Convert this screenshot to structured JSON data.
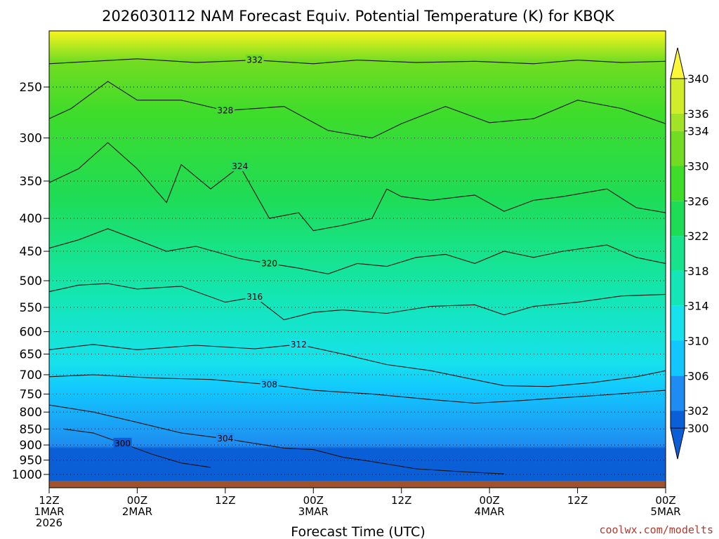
{
  "chart_data": {
    "type": "heatmap",
    "title": "2026030112 NAM Forecast Equiv. Potential Temperature (K) for KBQK",
    "xlabel": "Forecast Time (UTC)",
    "ylabel": "",
    "y_axis": {
      "ticks": [
        250,
        300,
        350,
        400,
        450,
        500,
        550,
        600,
        650,
        700,
        750,
        800,
        850,
        900,
        950,
        1000
      ],
      "scale": "log-pressure",
      "inverted": true
    },
    "x_axis": {
      "range_hours": [
        0,
        84
      ],
      "ticks": [
        {
          "hour": 0,
          "lines": [
            "12Z",
            "1MAR",
            "2026"
          ]
        },
        {
          "hour": 12,
          "lines": [
            "00Z",
            "2MAR"
          ]
        },
        {
          "hour": 24,
          "lines": [
            "12Z"
          ]
        },
        {
          "hour": 36,
          "lines": [
            "00Z",
            "3MAR"
          ]
        },
        {
          "hour": 48,
          "lines": [
            "12Z"
          ]
        },
        {
          "hour": 60,
          "lines": [
            "00Z",
            "4MAR"
          ]
        },
        {
          "hour": 72,
          "lines": [
            "12Z"
          ]
        },
        {
          "hour": 84,
          "lines": [
            "00Z",
            "5MAR"
          ]
        }
      ]
    },
    "colorbar": {
      "levels": [
        300,
        302,
        306,
        310,
        314,
        318,
        322,
        326,
        330,
        334,
        336,
        340
      ],
      "min": 298,
      "max": 342
    },
    "isotherms": [
      {
        "value": 332,
        "label": "332",
        "pts": [
          [
            0,
            230
          ],
          [
            6,
            228
          ],
          [
            12,
            226
          ],
          [
            20,
            229
          ],
          [
            28,
            227
          ],
          [
            36,
            230
          ],
          [
            42,
            227
          ],
          [
            50,
            229
          ],
          [
            58,
            228
          ],
          [
            66,
            230
          ],
          [
            72,
            227
          ],
          [
            78,
            229
          ],
          [
            84,
            228
          ]
        ]
      },
      {
        "value": 328,
        "label": "328",
        "pts": [
          [
            0,
            280
          ],
          [
            3,
            270
          ],
          [
            8,
            245
          ],
          [
            12,
            262
          ],
          [
            18,
            262
          ],
          [
            24,
            272
          ],
          [
            32,
            268
          ],
          [
            38,
            292
          ],
          [
            44,
            300
          ],
          [
            48,
            285
          ],
          [
            54,
            268
          ],
          [
            60,
            284
          ],
          [
            66,
            280
          ],
          [
            72,
            262
          ],
          [
            78,
            270
          ],
          [
            84,
            285
          ]
        ]
      },
      {
        "value": 324,
        "label": "324",
        "pts": [
          [
            0,
            352
          ],
          [
            4,
            335
          ],
          [
            8,
            305
          ],
          [
            12,
            335
          ],
          [
            16,
            378
          ],
          [
            18,
            330
          ],
          [
            22,
            360
          ],
          [
            26,
            332
          ],
          [
            30,
            400
          ],
          [
            34,
            392
          ],
          [
            36,
            418
          ],
          [
            40,
            410
          ],
          [
            44,
            400
          ],
          [
            46,
            360
          ],
          [
            48,
            370
          ],
          [
            52,
            375
          ],
          [
            58,
            368
          ],
          [
            62,
            390
          ],
          [
            66,
            375
          ],
          [
            70,
            370
          ],
          [
            76,
            360
          ],
          [
            80,
            385
          ],
          [
            84,
            392
          ]
        ]
      },
      {
        "value": 320,
        "label": "320",
        "pts": [
          [
            0,
            445
          ],
          [
            4,
            432
          ],
          [
            8,
            415
          ],
          [
            12,
            432
          ],
          [
            16,
            450
          ],
          [
            20,
            442
          ],
          [
            26,
            462
          ],
          [
            30,
            470
          ],
          [
            34,
            478
          ],
          [
            38,
            488
          ],
          [
            42,
            470
          ],
          [
            46,
            475
          ],
          [
            50,
            460
          ],
          [
            54,
            455
          ],
          [
            58,
            470
          ],
          [
            62,
            450
          ],
          [
            66,
            460
          ],
          [
            70,
            450
          ],
          [
            76,
            440
          ],
          [
            80,
            460
          ],
          [
            84,
            470
          ]
        ]
      },
      {
        "value": 316,
        "label": "316",
        "pts": [
          [
            0,
            520
          ],
          [
            4,
            508
          ],
          [
            8,
            505
          ],
          [
            12,
            515
          ],
          [
            18,
            510
          ],
          [
            24,
            540
          ],
          [
            28,
            530
          ],
          [
            32,
            575
          ],
          [
            36,
            560
          ],
          [
            40,
            555
          ],
          [
            46,
            562
          ],
          [
            52,
            548
          ],
          [
            58,
            545
          ],
          [
            62,
            565
          ],
          [
            66,
            548
          ],
          [
            72,
            540
          ],
          [
            78,
            528
          ],
          [
            84,
            525
          ]
        ]
      },
      {
        "value": 312,
        "label": "312",
        "pts": [
          [
            0,
            640
          ],
          [
            6,
            628
          ],
          [
            12,
            640
          ],
          [
            20,
            630
          ],
          [
            28,
            638
          ],
          [
            34,
            628
          ],
          [
            40,
            650
          ],
          [
            46,
            675
          ],
          [
            52,
            690
          ],
          [
            56,
            705
          ],
          [
            62,
            728
          ],
          [
            68,
            730
          ],
          [
            74,
            720
          ],
          [
            80,
            705
          ],
          [
            84,
            690
          ]
        ]
      },
      {
        "value": 308,
        "label": "308",
        "pts": [
          [
            0,
            705
          ],
          [
            6,
            700
          ],
          [
            14,
            708
          ],
          [
            22,
            712
          ],
          [
            30,
            725
          ],
          [
            36,
            740
          ],
          [
            40,
            745
          ],
          [
            44,
            750
          ],
          [
            52,
            765
          ],
          [
            58,
            775
          ],
          [
            64,
            768
          ],
          [
            70,
            760
          ],
          [
            76,
            752
          ],
          [
            84,
            740
          ]
        ]
      },
      {
        "value": 304,
        "label": "304",
        "pts": [
          [
            0,
            780
          ],
          [
            6,
            800
          ],
          [
            12,
            830
          ],
          [
            18,
            862
          ],
          [
            24,
            880
          ],
          [
            28,
            895
          ],
          [
            32,
            910
          ],
          [
            36,
            915
          ],
          [
            40,
            940
          ],
          [
            44,
            955
          ],
          [
            50,
            980
          ],
          [
            56,
            990
          ],
          [
            62,
            998
          ]
        ]
      },
      {
        "value": 300,
        "label": "300",
        "pts": [
          [
            2,
            850
          ],
          [
            6,
            862
          ],
          [
            10,
            895
          ],
          [
            14,
            930
          ],
          [
            18,
            960
          ],
          [
            22,
            975
          ]
        ]
      }
    ],
    "credit": "coolwx.com/modelts"
  }
}
